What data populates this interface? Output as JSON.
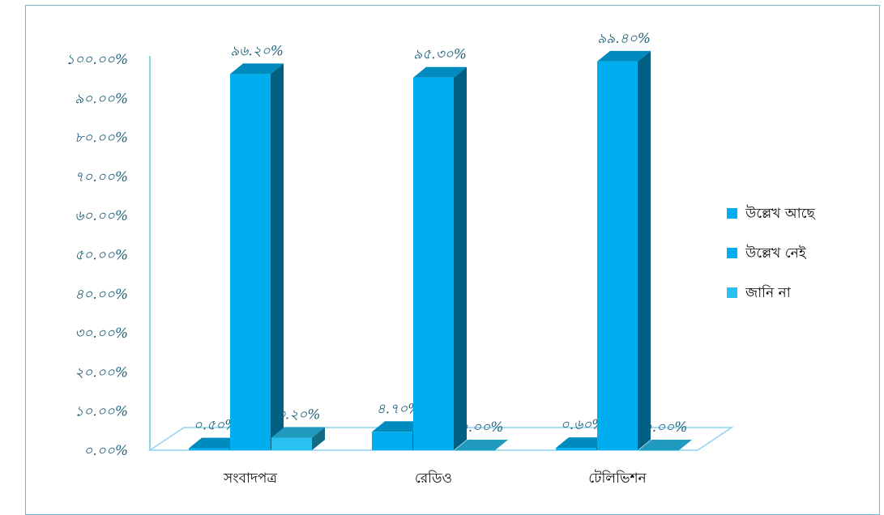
{
  "chart_data": {
    "type": "bar",
    "title": "",
    "xlabel": "",
    "ylabel": "",
    "ylim": [
      0,
      100
    ],
    "y_ticks": [
      "০.০০%",
      "১০.০০%",
      "২০.০০%",
      "৩০.০০%",
      "৪০.০০%",
      "৫০.০০%",
      "৬০.০০%",
      "৭০.০০%",
      "৮০.০০%",
      "৯০.০০%",
      "১০০.০০%"
    ],
    "categories": [
      "সংবাদপত্র",
      "রেডিও",
      "টেলিভিশন"
    ],
    "series": [
      {
        "name": "উল্লেখ আছে",
        "values": [
          0.5,
          4.7,
          0.6
        ],
        "labels": [
          "০.৫০%",
          "৪.৭০%",
          "০.৬০%"
        ],
        "color": "#00aeef"
      },
      {
        "name": "উল্লেখ নেই",
        "values": [
          96.2,
          95.3,
          99.4
        ],
        "labels": [
          "৯৬.২০%",
          "৯৫.৩০%",
          "৯৯.৪০%"
        ],
        "color": "#00aeef"
      },
      {
        "name": "জানি না",
        "values": [
          3.2,
          0.0,
          0.0
        ],
        "labels": [
          "৩.২০%",
          "০.০০%",
          "০.০০%"
        ],
        "color": "#29c1f0"
      }
    ],
    "legend_position": "right",
    "grid": false
  }
}
